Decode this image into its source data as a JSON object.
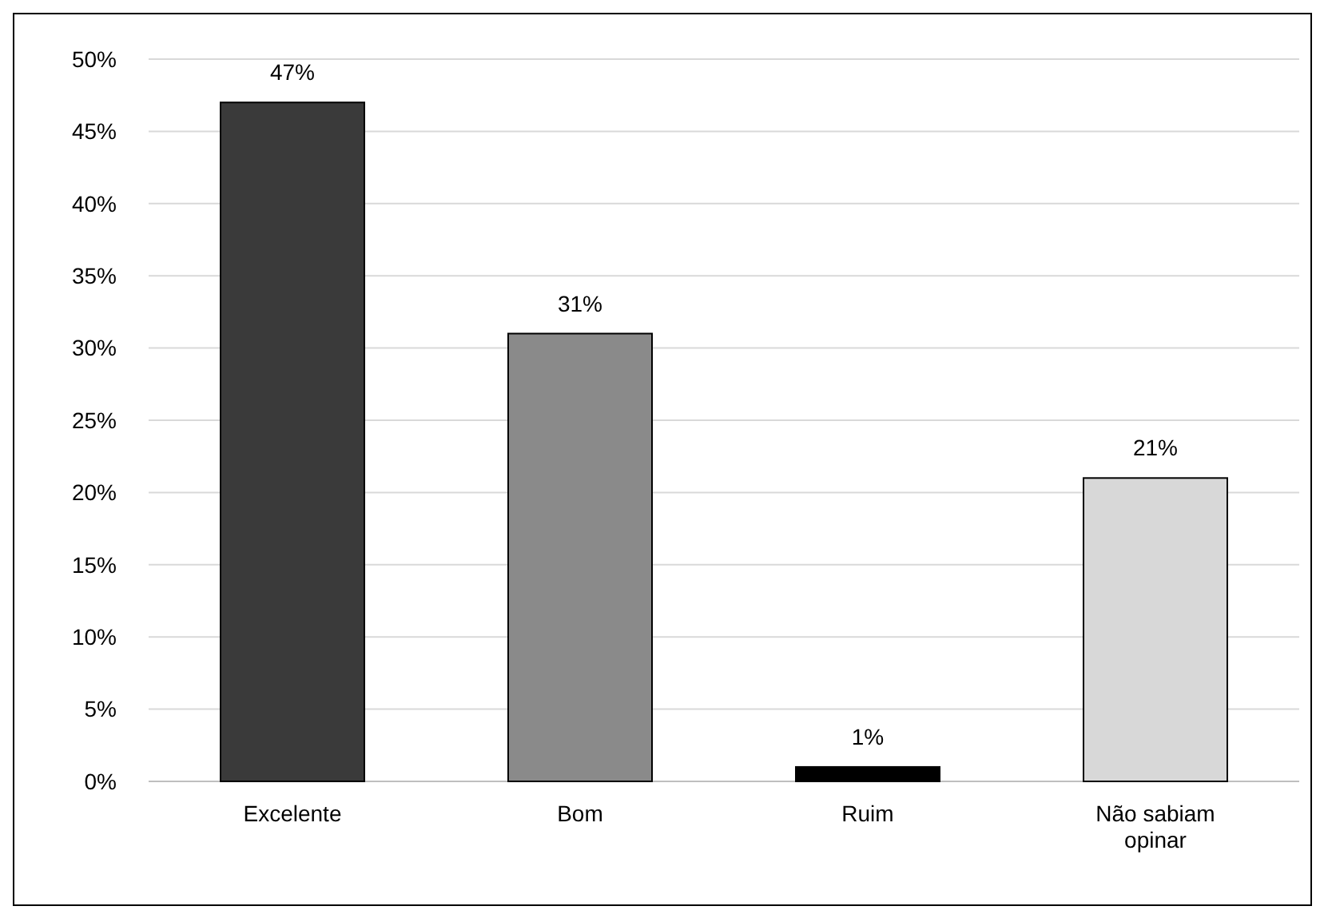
{
  "chart_data": {
    "type": "bar",
    "categories": [
      "Excelente",
      "Bom",
      "Ruim",
      "Não sabiam opinar"
    ],
    "values": [
      47,
      31,
      1,
      21
    ],
    "colors": [
      "#3a3a3a",
      "#8a8a8a",
      "#000000",
      "#d8d8d8"
    ],
    "ylim": [
      0,
      50
    ],
    "yticks": [
      {
        "value": 0,
        "label": "0%"
      },
      {
        "value": 5,
        "label": "5%"
      },
      {
        "value": 10,
        "label": "10%"
      },
      {
        "value": 15,
        "label": "15%"
      },
      {
        "value": 20,
        "label": "20%"
      },
      {
        "value": 25,
        "label": "25%"
      },
      {
        "value": 30,
        "label": "30%"
      },
      {
        "value": 35,
        "label": "35%"
      },
      {
        "value": 40,
        "label": "40%"
      },
      {
        "value": 45,
        "label": "45%"
      },
      {
        "value": 50,
        "label": "50%"
      }
    ],
    "value_labels": [
      "47%",
      "31%",
      "1%",
      "21%"
    ],
    "grid": "y"
  }
}
